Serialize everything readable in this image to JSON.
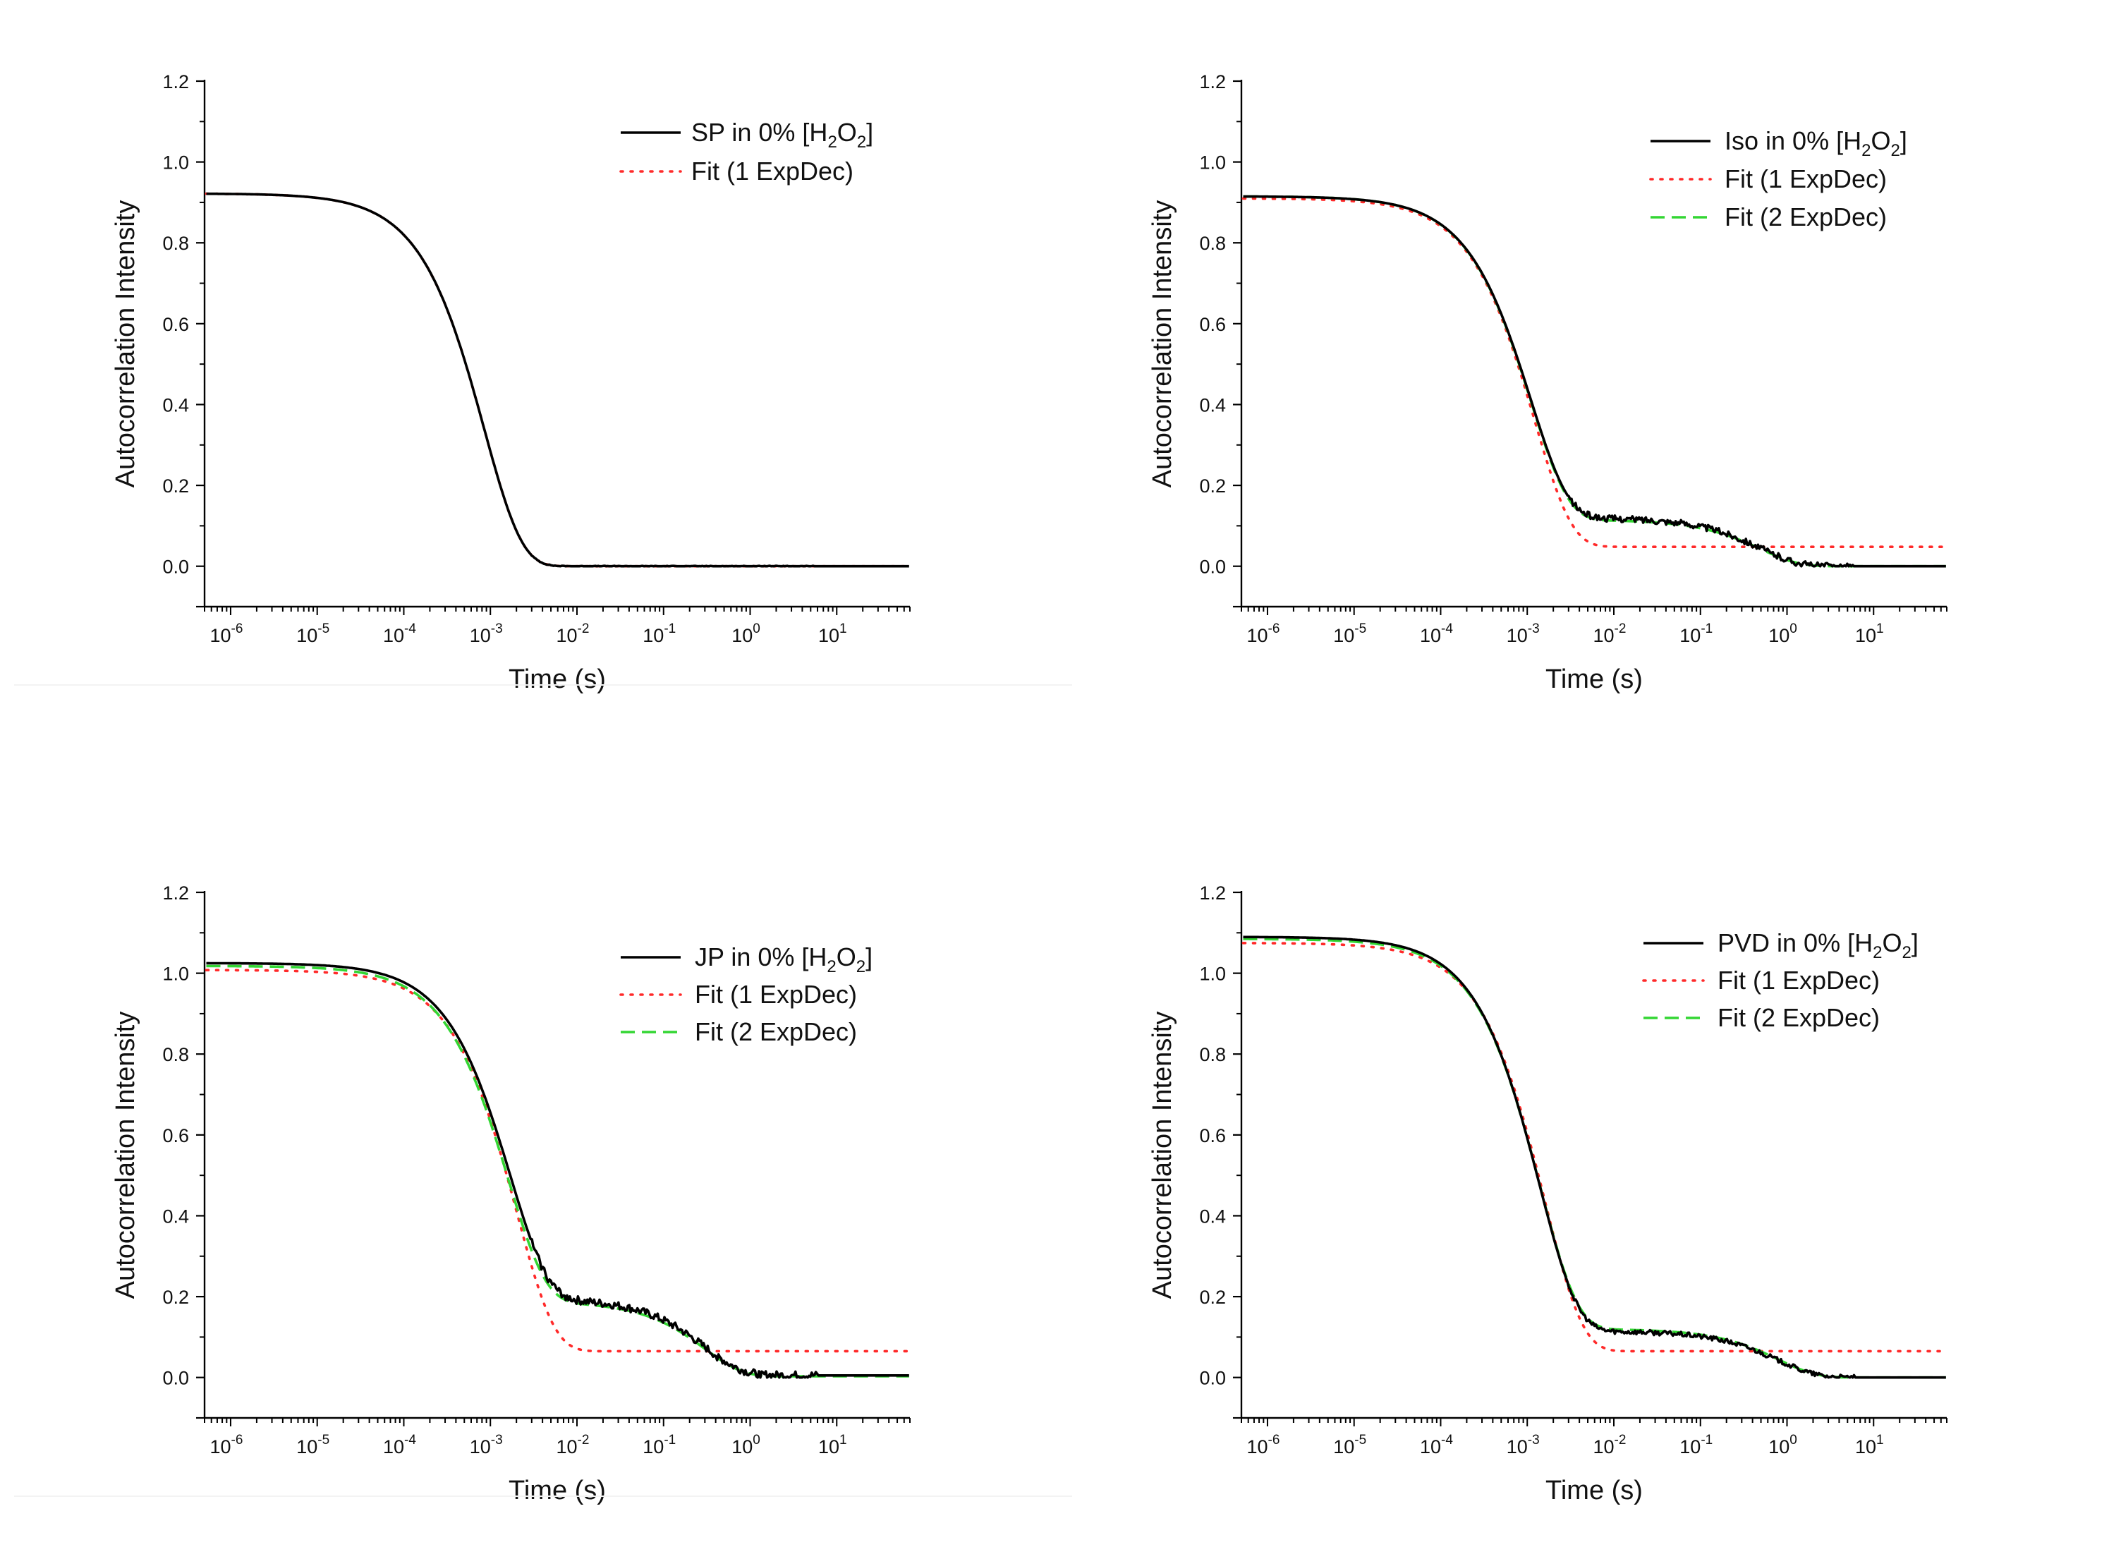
{
  "chart_data": [
    {
      "type": "line",
      "panel": "top-left",
      "xlabel": "Time (s)",
      "ylabel": "Autocorrelation Intensity",
      "xscale": "log",
      "xlim": [
        5e-07,
        70
      ],
      "ylim": [
        -0.1,
        1.2
      ],
      "yticks": [
        "0.0",
        "0.2",
        "0.4",
        "0.6",
        "0.8",
        "1.0",
        "1.2"
      ],
      "xticks": [
        {
          "base": "10",
          "exp": "-6"
        },
        {
          "base": "10",
          "exp": "-5"
        },
        {
          "base": "10",
          "exp": "-4"
        },
        {
          "base": "10",
          "exp": "-3"
        },
        {
          "base": "10",
          "exp": "-2"
        },
        {
          "base": "10",
          "exp": "-1"
        },
        {
          "base": "10",
          "exp": "0"
        },
        {
          "base": "10",
          "exp": "1"
        }
      ],
      "legend": [
        {
          "pre": "SP in 0% [H",
          "s1": "2",
          "mid": "O",
          "s2": "2",
          "post": "]",
          "style": "solid"
        },
        {
          "text": "Fit (1 ExpDec)",
          "style": "dotted"
        }
      ],
      "series": [
        {
          "name": "SP in 0% [H2O2]",
          "style": "solid",
          "model": {
            "y0": 0.0,
            "A1": 0.922,
            "t1": 0.00085,
            "A2": 0,
            "t2": 1
          },
          "noise": 0.001
        },
        {
          "name": "Fit (1 ExpDec)",
          "style": "dotted",
          "model": {
            "y0": 0.0,
            "A1": 0.922,
            "t1": 0.00085,
            "A2": 0,
            "t2": 1
          },
          "noise": 0
        }
      ]
    },
    {
      "type": "line",
      "panel": "top-right",
      "xlabel": "Time (s)",
      "ylabel": "Autocorrelation Intensity",
      "xscale": "log",
      "xlim": [
        5e-07,
        70
      ],
      "ylim": [
        -0.1,
        1.2
      ],
      "yticks": [
        "0.0",
        "0.2",
        "0.4",
        "0.6",
        "0.8",
        "1.0",
        "1.2"
      ],
      "xticks": [
        {
          "base": "10",
          "exp": "-6"
        },
        {
          "base": "10",
          "exp": "-5"
        },
        {
          "base": "10",
          "exp": "-4"
        },
        {
          "base": "10",
          "exp": "-3"
        },
        {
          "base": "10",
          "exp": "-2"
        },
        {
          "base": "10",
          "exp": "-1"
        },
        {
          "base": "10",
          "exp": "0"
        },
        {
          "base": "10",
          "exp": "1"
        }
      ],
      "legend": [
        {
          "pre": "Iso in 0% [H",
          "s1": "2",
          "mid": "O",
          "s2": "2",
          "post": "]",
          "style": "solid"
        },
        {
          "text": "Fit (1 ExpDec)",
          "style": "dotted"
        },
        {
          "text": "Fit (2 ExpDec)",
          "style": "dashed"
        }
      ],
      "series": [
        {
          "name": "Iso in 0% [H2O2]",
          "style": "solid",
          "model": {
            "y0": 0.0,
            "A1": 0.795,
            "t1": 0.0011,
            "A2": 0.12,
            "t2": 0.5
          },
          "noise": 0.008
        },
        {
          "name": "Fit (1 ExpDec)",
          "style": "dotted",
          "model": {
            "y0": 0.048,
            "A1": 0.862,
            "t1": 0.0012,
            "A2": 0,
            "t2": 1
          },
          "noise": 0
        },
        {
          "name": "Fit (2 ExpDec)",
          "style": "dashed",
          "model": {
            "y0": 0.0,
            "A1": 0.8,
            "t1": 0.0011,
            "A2": 0.115,
            "t2": 0.5
          },
          "noise": 0
        }
      ]
    },
    {
      "type": "line",
      "panel": "bottom-left",
      "xlabel": "Time (s)",
      "ylabel": "Autocorrelation Intensity",
      "xscale": "log",
      "xlim": [
        5e-07,
        70
      ],
      "ylim": [
        -0.1,
        1.2
      ],
      "yticks": [
        "0.0",
        "0.2",
        "0.4",
        "0.6",
        "0.8",
        "1.0",
        "1.2"
      ],
      "xticks": [
        {
          "base": "10",
          "exp": "-6"
        },
        {
          "base": "10",
          "exp": "-5"
        },
        {
          "base": "10",
          "exp": "-4"
        },
        {
          "base": "10",
          "exp": "-3"
        },
        {
          "base": "10",
          "exp": "-2"
        },
        {
          "base": "10",
          "exp": "-1"
        },
        {
          "base": "10",
          "exp": "0"
        },
        {
          "base": "10",
          "exp": "1"
        }
      ],
      "legend": [
        {
          "pre": "JP in 0% [H",
          "s1": "2",
          "mid": "O",
          "s2": "2",
          "post": "]",
          "style": "solid"
        },
        {
          "text": "Fit (1 ExpDec)",
          "style": "dotted"
        },
        {
          "text": "Fit (2 ExpDec)",
          "style": "dashed"
        }
      ],
      "series": [
        {
          "name": "JP in 0% [H2O2]",
          "style": "solid",
          "model": {
            "y0": 0.005,
            "A1": 0.83,
            "t1": 0.0017,
            "A2": 0.19,
            "t2": 0.3
          },
          "noise": 0.01
        },
        {
          "name": "Fit (1 ExpDec)",
          "style": "dotted",
          "model": {
            "y0": 0.065,
            "A1": 0.943,
            "t1": 0.002,
            "A2": 0,
            "t2": 1
          },
          "noise": 0
        },
        {
          "name": "Fit (2 ExpDec)",
          "style": "dashed",
          "model": {
            "y0": 0.003,
            "A1": 0.83,
            "t1": 0.0016,
            "A2": 0.185,
            "t2": 0.3
          },
          "noise": 0
        }
      ]
    },
    {
      "type": "line",
      "panel": "bottom-right",
      "xlabel": "Time (s)",
      "ylabel": "Autocorrelation Intensity",
      "xscale": "log",
      "xlim": [
        5e-07,
        70
      ],
      "ylim": [
        -0.1,
        1.2
      ],
      "yticks": [
        "0.0",
        "0.2",
        "0.4",
        "0.6",
        "0.8",
        "1.0",
        "1.2"
      ],
      "xticks": [
        {
          "base": "10",
          "exp": "-6"
        },
        {
          "base": "10",
          "exp": "-5"
        },
        {
          "base": "10",
          "exp": "-4"
        },
        {
          "base": "10",
          "exp": "-3"
        },
        {
          "base": "10",
          "exp": "-2"
        },
        {
          "base": "10",
          "exp": "-1"
        },
        {
          "base": "10",
          "exp": "0"
        },
        {
          "base": "10",
          "exp": "1"
        }
      ],
      "legend": [
        {
          "pre": "PVD in 0% [H",
          "s1": "2",
          "mid": "O",
          "s2": "2",
          "post": "]",
          "style": "solid"
        },
        {
          "text": "Fit (1 ExpDec)",
          "style": "dotted"
        },
        {
          "text": "Fit (2 ExpDec)",
          "style": "dashed"
        }
      ],
      "series": [
        {
          "name": "PVD in 0% [H2O2]",
          "style": "solid",
          "model": {
            "y0": 0.0,
            "A1": 0.975,
            "t1": 0.0014,
            "A2": 0.115,
            "t2": 0.8
          },
          "noise": 0.006
        },
        {
          "name": "Fit (1 ExpDec)",
          "style": "dotted",
          "model": {
            "y0": 0.065,
            "A1": 1.01,
            "t1": 0.0016,
            "A2": 0,
            "t2": 1
          },
          "noise": 0
        },
        {
          "name": "Fit (2 ExpDec)",
          "style": "dashed",
          "model": {
            "y0": 0.0,
            "A1": 0.965,
            "t1": 0.0014,
            "A2": 0.12,
            "t2": 0.8
          },
          "noise": 0
        }
      ]
    }
  ],
  "colors": {
    "solid": "#000000",
    "dotted": "#ff2a2a",
    "dashed": "#33d633"
  }
}
